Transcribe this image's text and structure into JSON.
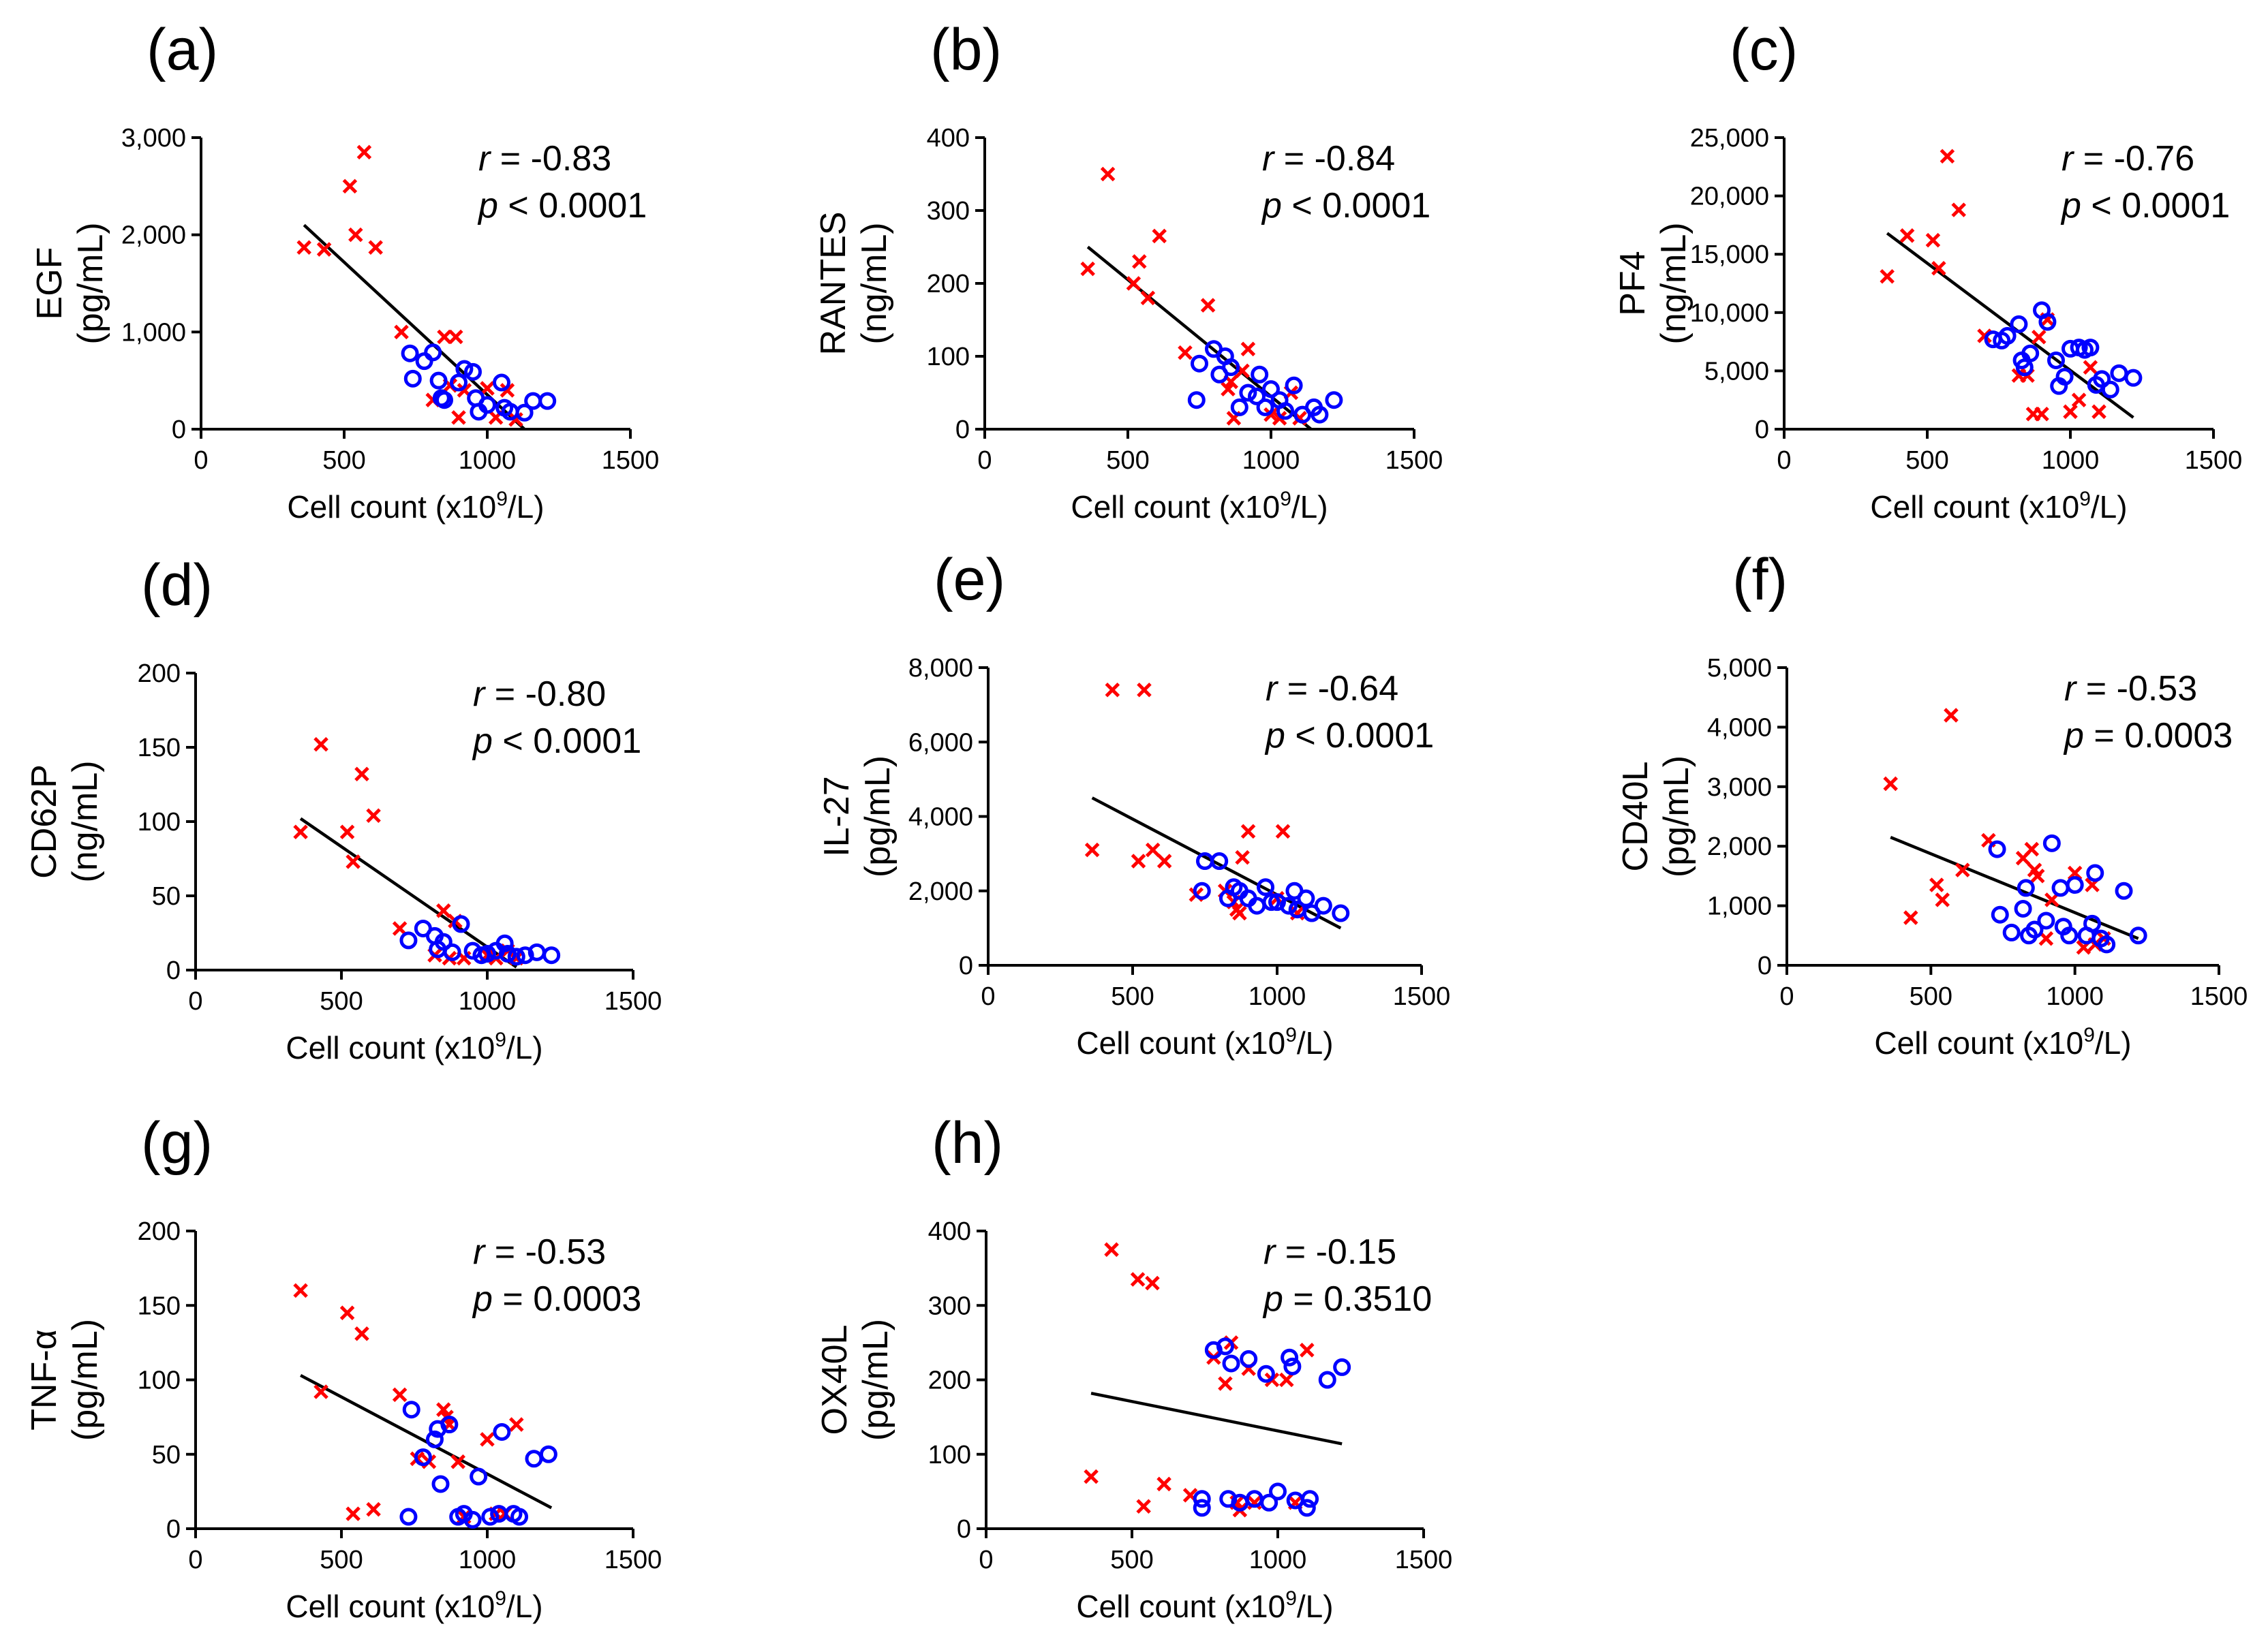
{
  "chart_data": [
    {
      "type": "scatter",
      "panel": "(a)",
      "ylabel": "EGF",
      "yunit": "(pg/mL)",
      "xlabel": "Cell count (x10^9/L)",
      "xlim": [
        0,
        1500
      ],
      "xticks": [
        0,
        500,
        1000,
        1500
      ],
      "ylim": [
        0,
        3000
      ],
      "yticks": [
        0,
        1000,
        2000,
        3000
      ],
      "ytick_labels": [
        "0",
        "1,000",
        "2,000",
        "3,000"
      ],
      "stat1_label": "r",
      "stat1_rel": " = ",
      "stat1_value": "-0.83",
      "stat2_label": "p",
      "stat2_rel": " < ",
      "stat2_value": "0.0001",
      "fit": [
        [
          360,
          2100
        ],
        [
          1130,
          0
        ]
      ],
      "series": [
        {
          "name": "crosses",
          "marker": "x",
          "color": "#ff0000",
          "x": [
            360,
            430,
            520,
            540,
            570,
            610,
            700,
            810,
            850,
            870,
            890,
            900,
            920,
            1000,
            1030,
            1070,
            1100
          ],
          "y": [
            1870,
            1850,
            2500,
            2000,
            2850,
            1870,
            1000,
            300,
            950,
            450,
            950,
            120,
            400,
            420,
            120,
            400,
            100
          ]
        },
        {
          "name": "circles",
          "marker": "o",
          "color": "#0000ff",
          "x": [
            730,
            740,
            780,
            810,
            830,
            840,
            850,
            900,
            920,
            950,
            960,
            970,
            1000,
            1050,
            1060,
            1080,
            1130,
            1160,
            1210
          ],
          "y": [
            780,
            520,
            700,
            790,
            500,
            320,
            300,
            480,
            620,
            590,
            320,
            180,
            250,
            480,
            220,
            180,
            170,
            290,
            290
          ]
        }
      ]
    },
    {
      "type": "scatter",
      "panel": "(b)",
      "ylabel": "RANTES",
      "yunit": "(ng/mL)",
      "xlabel": "Cell count (x10^9/L)",
      "xlim": [
        0,
        1500
      ],
      "xticks": [
        0,
        500,
        1000,
        1500
      ],
      "ylim": [
        0,
        400
      ],
      "yticks": [
        0,
        100,
        200,
        300,
        400
      ],
      "ytick_labels": [
        "0",
        "100",
        "200",
        "300",
        "400"
      ],
      "stat1_label": "r",
      "stat1_rel": " = ",
      "stat1_value": "-0.84",
      "stat2_label": "p",
      "stat2_rel": " < ",
      "stat2_value": "0.0001",
      "fit": [
        [
          360,
          250
        ],
        [
          1140,
          0
        ]
      ],
      "series": [
        {
          "name": "crosses",
          "marker": "x",
          "color": "#ff0000",
          "x": [
            360,
            430,
            520,
            540,
            570,
            610,
            700,
            780,
            850,
            860,
            870,
            900,
            920,
            1000,
            1030,
            1070,
            1100
          ],
          "y": [
            220,
            350,
            200,
            230,
            180,
            265,
            105,
            170,
            55,
            65,
            15,
            80,
            110,
            20,
            15,
            50,
            15
          ]
        },
        {
          "name": "circles",
          "marker": "o",
          "color": "#0000ff",
          "x": [
            740,
            750,
            800,
            820,
            840,
            860,
            890,
            920,
            950,
            960,
            980,
            1000,
            1030,
            1050,
            1080,
            1110,
            1150,
            1170,
            1220
          ],
          "y": [
            40,
            90,
            110,
            75,
            100,
            85,
            30,
            50,
            45,
            75,
            30,
            55,
            40,
            25,
            60,
            20,
            30,
            20,
            40
          ]
        }
      ]
    },
    {
      "type": "scatter",
      "panel": "(c)",
      "ylabel": "PF4",
      "yunit": "(ng/mL)",
      "xlabel": "Cell count (x10^9/L)",
      "xlim": [
        0,
        1500
      ],
      "xticks": [
        0,
        500,
        1000,
        1500
      ],
      "ylim": [
        0,
        25000
      ],
      "yticks": [
        0,
        5000,
        10000,
        15000,
        20000,
        25000
      ],
      "ytick_labels": [
        "0",
        "5,000",
        "10,000",
        "15,000",
        "20,000",
        "25,000"
      ],
      "stat1_label": "r",
      "stat1_rel": " = ",
      "stat1_value": "-0.76",
      "stat2_label": "p",
      "stat2_rel": " < ",
      "stat2_value": "0.0001",
      "fit": [
        [
          360,
          16800
        ],
        [
          1220,
          1000
        ]
      ],
      "series": [
        {
          "name": "crosses",
          "marker": "x",
          "color": "#ff0000",
          "x": [
            360,
            430,
            520,
            540,
            570,
            610,
            700,
            820,
            850,
            870,
            890,
            900,
            920,
            1000,
            1030,
            1070,
            1100
          ],
          "y": [
            13100,
            16600,
            16200,
            13800,
            23400,
            18800,
            8000,
            4600,
            4600,
            1300,
            7900,
            1300,
            9400,
            1500,
            2500,
            5300,
            1500
          ]
        },
        {
          "name": "circles",
          "marker": "o",
          "color": "#0000ff",
          "x": [
            730,
            760,
            780,
            820,
            830,
            840,
            860,
            900,
            920,
            950,
            960,
            980,
            1000,
            1030,
            1050,
            1070,
            1090,
            1110,
            1140,
            1170,
            1220
          ],
          "y": [
            7700,
            7600,
            8000,
            9000,
            5900,
            5300,
            6500,
            10200,
            9200,
            5900,
            3700,
            4500,
            6900,
            7000,
            6800,
            7000,
            3800,
            4300,
            3400,
            4800,
            4400
          ]
        }
      ]
    },
    {
      "type": "scatter",
      "panel": "(d)",
      "ylabel": "CD62P",
      "yunit": "(ng/mL)",
      "xlabel": "Cell count (x10^9/L)",
      "xlim": [
        0,
        1500
      ],
      "xticks": [
        0,
        500,
        1000,
        1500
      ],
      "ylim": [
        0,
        200
      ],
      "yticks": [
        0,
        50,
        100,
        150,
        200
      ],
      "ytick_labels": [
        "0",
        "50",
        "100",
        "150",
        "200"
      ],
      "stat1_label": "r",
      "stat1_rel": " = ",
      "stat1_value": "-0.80",
      "stat2_label": "p",
      "stat2_rel": " < ",
      "stat2_value": "0.0001",
      "fit": [
        [
          360,
          102
        ],
        [
          1100,
          2
        ]
      ],
      "series": [
        {
          "name": "crosses",
          "marker": "x",
          "color": "#ff0000",
          "x": [
            360,
            430,
            520,
            540,
            570,
            610,
            700,
            820,
            850,
            870,
            890,
            920,
            1000,
            1030,
            1070,
            1100
          ],
          "y": [
            93,
            152,
            93,
            73,
            132,
            104,
            28,
            10,
            40,
            8,
            33,
            8,
            10,
            8,
            13,
            8
          ]
        },
        {
          "name": "circles",
          "marker": "o",
          "color": "#0000ff",
          "x": [
            730,
            780,
            820,
            830,
            850,
            880,
            910,
            950,
            980,
            1000,
            1030,
            1060,
            1070,
            1100,
            1130,
            1170,
            1220
          ],
          "y": [
            20,
            28,
            23,
            14,
            19,
            12,
            31,
            13,
            10,
            11,
            13,
            18,
            11,
            9,
            10,
            12,
            10
          ]
        }
      ]
    },
    {
      "type": "scatter",
      "panel": "(e)",
      "ylabel": "IL-27",
      "yunit": "(pg/mL)",
      "xlabel": "Cell count (x10^9/L)",
      "xlim": [
        0,
        1500
      ],
      "xticks": [
        0,
        500,
        1000,
        1500
      ],
      "ylim": [
        0,
        8000
      ],
      "yticks": [
        0,
        2000,
        4000,
        6000,
        8000
      ],
      "ytick_labels": [
        "0",
        "2,000",
        "4,000",
        "6,000",
        "8,000"
      ],
      "stat1_label": "r",
      "stat1_rel": " = ",
      "stat1_value": "-0.64",
      "stat2_label": "p",
      "stat2_rel": " < ",
      "stat2_value": "0.0001",
      "fit": [
        [
          360,
          4500
        ],
        [
          1220,
          1000
        ]
      ],
      "series": [
        {
          "name": "crosses",
          "marker": "x",
          "color": "#ff0000",
          "x": [
            360,
            430,
            520,
            540,
            570,
            610,
            720,
            820,
            850,
            860,
            870,
            880,
            900,
            1000,
            1020,
            1070
          ],
          "y": [
            3100,
            7400,
            2800,
            7400,
            3100,
            2800,
            1900,
            2000,
            1700,
            1500,
            1400,
            2900,
            3600,
            1800,
            3600,
            1400
          ]
        },
        {
          "name": "circles",
          "marker": "o",
          "color": "#0000ff",
          "x": [
            740,
            750,
            800,
            830,
            850,
            870,
            900,
            930,
            960,
            980,
            1000,
            1040,
            1060,
            1070,
            1100,
            1120,
            1160,
            1220
          ],
          "y": [
            2000,
            2800,
            2800,
            1800,
            2100,
            2000,
            1800,
            1600,
            2100,
            1700,
            1700,
            1600,
            2000,
            1500,
            1800,
            1400,
            1600,
            1400
          ]
        }
      ]
    },
    {
      "type": "scatter",
      "panel": "(f)",
      "ylabel": "CD40L",
      "yunit": "(pg/mL)",
      "xlabel": "Cell count (x10^9/L)",
      "xlim": [
        0,
        1500
      ],
      "xticks": [
        0,
        500,
        1000,
        1500
      ],
      "ylim": [
        0,
        5000
      ],
      "yticks": [
        0,
        1000,
        2000,
        3000,
        4000,
        5000
      ],
      "ytick_labels": [
        "0",
        "1,000",
        "2,000",
        "3,000",
        "4,000",
        "5,000"
      ],
      "stat1_label": "r",
      "stat1_rel": " = ",
      "stat1_value": "-0.53",
      "stat2_label": "p",
      "stat2_rel": " = ",
      "stat2_value": "0.0003",
      "fit": [
        [
          360,
          2150
        ],
        [
          1220,
          450
        ]
      ],
      "series": [
        {
          "name": "crosses",
          "marker": "x",
          "color": "#ff0000",
          "x": [
            360,
            430,
            520,
            540,
            570,
            610,
            700,
            820,
            850,
            860,
            870,
            900,
            920,
            1000,
            1030,
            1060,
            1070,
            1100
          ],
          "y": [
            3050,
            800,
            1350,
            1100,
            4200,
            1600,
            2100,
            1800,
            1950,
            1600,
            1500,
            450,
            1100,
            1550,
            300,
            1350,
            350,
            450
          ]
        },
        {
          "name": "circles",
          "marker": "o",
          "color": "#0000ff",
          "x": [
            730,
            740,
            780,
            820,
            830,
            840,
            860,
            900,
            920,
            950,
            960,
            980,
            1000,
            1040,
            1060,
            1070,
            1090,
            1110,
            1170,
            1220
          ],
          "y": [
            1950,
            850,
            550,
            950,
            1300,
            500,
            600,
            750,
            2050,
            1300,
            650,
            500,
            1350,
            500,
            700,
            1550,
            450,
            350,
            1250,
            500
          ]
        }
      ]
    },
    {
      "type": "scatter",
      "panel": "(g)",
      "ylabel": "TNF-α",
      "yunit": "(pg/mL)",
      "xlabel": "Cell count (x10^9/L)",
      "xlim": [
        0,
        1500
      ],
      "xticks": [
        0,
        500,
        1000,
        1500
      ],
      "ylim": [
        0,
        200
      ],
      "yticks": [
        0,
        50,
        100,
        150,
        200
      ],
      "ytick_labels": [
        "0",
        "50",
        "100",
        "150",
        "200"
      ],
      "stat1_label": "r",
      "stat1_rel": " = ",
      "stat1_value": "-0.53",
      "stat2_label": "p",
      "stat2_rel": " = ",
      "stat2_value": "0.0003",
      "fit": [
        [
          360,
          103
        ],
        [
          1220,
          14
        ]
      ],
      "series": [
        {
          "name": "crosses",
          "marker": "x",
          "color": "#ff0000",
          "x": [
            360,
            430,
            520,
            540,
            570,
            610,
            700,
            760,
            800,
            850,
            860,
            870,
            900,
            920,
            1000,
            1030,
            1060,
            1100
          ],
          "y": [
            160,
            92,
            145,
            10,
            131,
            13,
            90,
            47,
            45,
            80,
            75,
            70,
            45,
            8,
            60,
            10,
            10,
            70
          ]
        },
        {
          "name": "circles",
          "marker": "o",
          "color": "#0000ff",
          "x": [
            730,
            740,
            780,
            820,
            830,
            840,
            870,
            900,
            920,
            950,
            970,
            1010,
            1040,
            1050,
            1090,
            1110,
            1160,
            1210
          ],
          "y": [
            8,
            80,
            48,
            60,
            67,
            30,
            70,
            8,
            10,
            6,
            35,
            8,
            10,
            65,
            10,
            8,
            47,
            50
          ]
        }
      ]
    },
    {
      "type": "scatter",
      "panel": "(h)",
      "ylabel": "OX40L",
      "yunit": "(pg/mL)",
      "xlabel": "Cell count (x10^9/L)",
      "xlim": [
        0,
        1500
      ],
      "xticks": [
        0,
        500,
        1000,
        1500
      ],
      "ylim": [
        0,
        400
      ],
      "yticks": [
        0,
        100,
        200,
        300,
        400
      ],
      "ytick_labels": [
        "0",
        "100",
        "200",
        "300",
        "400"
      ],
      "stat1_label": "r",
      "stat1_rel": " = ",
      "stat1_value": "-0.15",
      "stat2_label": "p",
      "stat2_rel": " = ",
      "stat2_value": "0.3510",
      "fit": [
        [
          360,
          182
        ],
        [
          1220,
          114
        ]
      ],
      "series": [
        {
          "name": "crosses",
          "marker": "x",
          "color": "#ff0000",
          "x": [
            360,
            430,
            520,
            540,
            570,
            610,
            700,
            780,
            820,
            840,
            860,
            870,
            900,
            920,
            980,
            1030,
            1060,
            1100
          ],
          "y": [
            70,
            375,
            335,
            30,
            330,
            60,
            45,
            230,
            195,
            250,
            35,
            25,
            215,
            35,
            200,
            200,
            35,
            240
          ]
        },
        {
          "name": "circles",
          "marker": "o",
          "color": "#0000ff",
          "x": [
            740,
            740,
            780,
            820,
            830,
            840,
            870,
            900,
            920,
            960,
            970,
            1000,
            1040,
            1050,
            1060,
            1100,
            1110,
            1170,
            1220
          ],
          "y": [
            28,
            40,
            240,
            245,
            40,
            222,
            35,
            228,
            40,
            208,
            35,
            50,
            230,
            218,
            38,
            28,
            40,
            200,
            217
          ]
        }
      ]
    }
  ]
}
